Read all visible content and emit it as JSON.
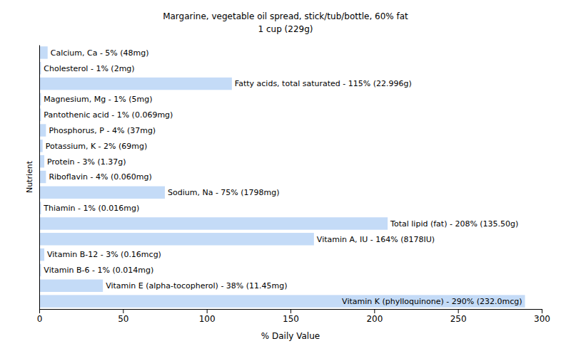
{
  "chart_data": {
    "type": "bar",
    "orientation": "horizontal",
    "title": "Margarine, vegetable oil spread, stick/tub/bottle, 60% fat",
    "subtitle": "1 cup (229g)",
    "x_label": "% Daily Value",
    "y_label": "Nutrient",
    "categories": [
      "Calcium, Ca - 5% (48mg)",
      "Cholesterol - 1% (2mg)",
      "Fatty acids, total saturated - 115% (22.996g)",
      "Magnesium, Mg - 1% (5mg)",
      "Pantothenic acid - 1% (0.069mg)",
      "Phosphorus, P - 4% (37mg)",
      "Potassium, K - 2% (69mg)",
      "Protein - 3% (1.37g)",
      "Riboflavin - 4% (0.060mg)",
      "Sodium, Na - 75% (1798mg)",
      "Thiamin - 1% (0.016mg)",
      "Total lipid (fat) - 208% (135.50g)",
      "Vitamin A, IU - 164% (8178IU)",
      "Vitamin B-12 - 3% (0.16mcg)",
      "Vitamin B-6 - 1% (0.014mg)",
      "Vitamin E (alpha-tocopherol) - 38% (11.45mg)",
      "Vitamin K (phylloquinone) - 290% (232.0mcg)"
    ],
    "values": [
      5,
      1,
      115,
      1,
      1,
      4,
      2,
      3,
      4,
      75,
      1,
      208,
      164,
      3,
      1,
      38,
      290
    ],
    "color": "#c4dbf7",
    "xlim": [
      0,
      300
    ],
    "xticks": [
      0,
      50,
      100,
      150,
      200,
      250,
      300
    ],
    "tick_labels": "x",
    "grid": false
  }
}
